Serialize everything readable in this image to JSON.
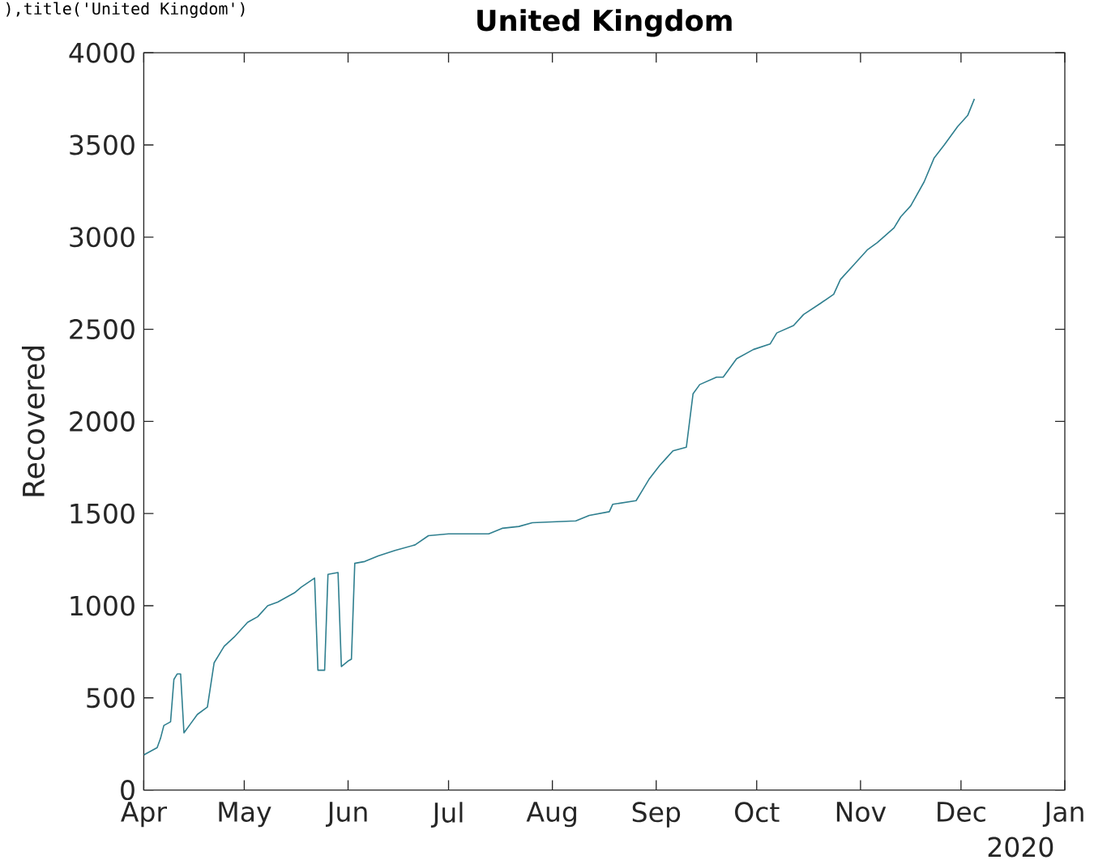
{
  "chart_data": {
    "type": "line",
    "title": "United Kingdom",
    "ylabel": "Recovered",
    "annotations": [
      "),title('United Kingdom')",
      "2020"
    ],
    "x": [
      "2020-04-01",
      "2020-04-05",
      "2020-04-06",
      "2020-04-07",
      "2020-04-09",
      "2020-04-10",
      "2020-04-11",
      "2020-04-12",
      "2020-04-13",
      "2020-04-15",
      "2020-04-17",
      "2020-04-20",
      "2020-04-21",
      "2020-04-22",
      "2020-04-24",
      "2020-04-25",
      "2020-04-28",
      "2020-05-02",
      "2020-05-05",
      "2020-05-08",
      "2020-05-11",
      "2020-05-16",
      "2020-05-18",
      "2020-05-22",
      "2020-05-23",
      "2020-05-25",
      "2020-05-26",
      "2020-05-29",
      "2020-05-30",
      "2020-06-01",
      "2020-06-02",
      "2020-06-03",
      "2020-06-06",
      "2020-06-10",
      "2020-06-15",
      "2020-06-21",
      "2020-06-25",
      "2020-07-01",
      "2020-07-13",
      "2020-07-17",
      "2020-07-22",
      "2020-07-26",
      "2020-08-08",
      "2020-08-12",
      "2020-08-18",
      "2020-08-19",
      "2020-08-26",
      "2020-08-28",
      "2020-08-30",
      "2020-09-02",
      "2020-09-04",
      "2020-09-06",
      "2020-09-10",
      "2020-09-12",
      "2020-09-14",
      "2020-09-19",
      "2020-09-21",
      "2020-09-25",
      "2020-09-30",
      "2020-10-05",
      "2020-10-07",
      "2020-10-12",
      "2020-10-15",
      "2020-10-20",
      "2020-10-24",
      "2020-10-26",
      "2020-10-30",
      "2020-11-03",
      "2020-11-06",
      "2020-11-11",
      "2020-11-13",
      "2020-11-16",
      "2020-11-20",
      "2020-11-23",
      "2020-11-26",
      "2020-11-30",
      "2020-12-03",
      "2020-12-05"
    ],
    "series": [
      {
        "color": "#2f7f8f",
        "values": [
          190,
          230,
          280,
          350,
          370,
          600,
          630,
          630,
          310,
          360,
          410,
          450,
          570,
          690,
          750,
          780,
          830,
          910,
          940,
          1000,
          1020,
          1070,
          1100,
          1150,
          650,
          650,
          1170,
          1180,
          670,
          700,
          710,
          1230,
          1240,
          1270,
          1300,
          1330,
          1380,
          1390,
          1390,
          1420,
          1430,
          1450,
          1460,
          1490,
          1510,
          1550,
          1570,
          1630,
          1690,
          1760,
          1800,
          1840,
          1860,
          2150,
          2200,
          2240,
          2240,
          2340,
          2390,
          2420,
          2480,
          2520,
          2580,
          2640,
          2690,
          2770,
          2850,
          2930,
          2970,
          3050,
          3110,
          3170,
          3300,
          3430,
          3500,
          3600,
          3660,
          3750
        ]
      }
    ],
    "xlim": [
      "2020-04-01",
      "2021-01-01"
    ],
    "xticks": [
      {
        "value": "2020-04-01",
        "label": "Apr"
      },
      {
        "value": "2020-05-01",
        "label": "May"
      },
      {
        "value": "2020-06-01",
        "label": "Jun"
      },
      {
        "value": "2020-07-01",
        "label": "Jul"
      },
      {
        "value": "2020-08-01",
        "label": "Aug"
      },
      {
        "value": "2020-09-01",
        "label": "Sep"
      },
      {
        "value": "2020-10-01",
        "label": "Oct"
      },
      {
        "value": "2020-11-01",
        "label": "Nov"
      },
      {
        "value": "2020-12-01",
        "label": "Dec"
      },
      {
        "value": "2021-01-01",
        "label": "Jan"
      }
    ],
    "ylim": [
      0,
      4000
    ],
    "yticks": [
      0,
      500,
      1000,
      1500,
      2000,
      2500,
      3000,
      3500,
      4000
    ]
  }
}
